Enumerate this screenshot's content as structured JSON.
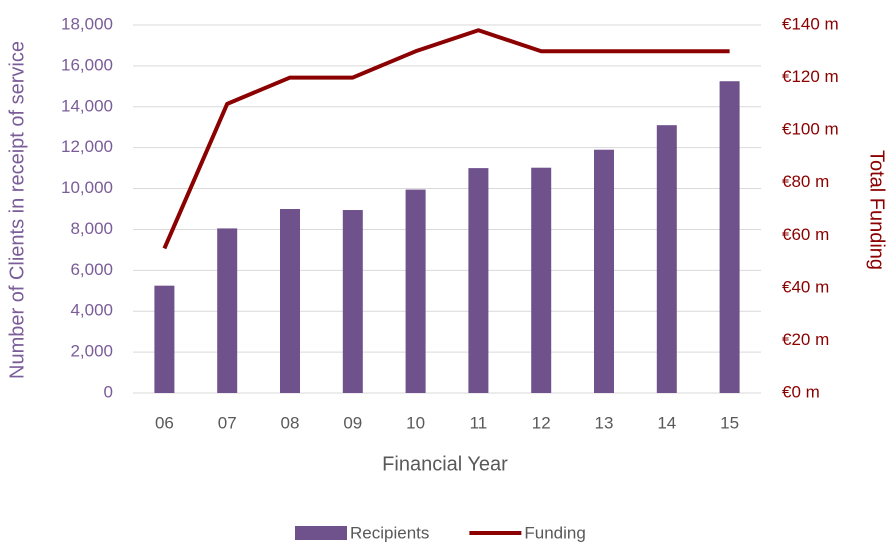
{
  "chart_data": {
    "type": "bar",
    "categories": [
      "06",
      "07",
      "08",
      "09",
      "10",
      "11",
      "12",
      "13",
      "14",
      "15"
    ],
    "series": [
      {
        "name": "Recipients",
        "type": "bar",
        "color": "#6f518c",
        "values": [
          5250,
          8050,
          9000,
          8950,
          9950,
          11000,
          11020,
          11900,
          13100,
          15250
        ]
      },
      {
        "name": "Funding",
        "type": "line",
        "axis": "y2",
        "color": "#8b0000",
        "values": [
          55,
          110,
          120,
          120,
          130,
          138,
          130,
          130,
          130,
          130
        ]
      }
    ],
    "x_label": "Financial Year",
    "y_label": "Number of Clients in receipt of service",
    "y2_label": "Total Funding",
    "ylim": [
      0,
      18000
    ],
    "yticks": [
      0,
      {
        "value": 2000,
        "label": "2,000"
      },
      {
        "value": 4000,
        "label": "4,000"
      },
      {
        "value": 6000,
        "label": "6,000"
      },
      {
        "value": 8000,
        "label": "8,000"
      },
      {
        "value": 10000,
        "label": "10,000"
      },
      {
        "value": 12000,
        "label": "12,000"
      },
      {
        "value": 14000,
        "label": "14,000"
      },
      {
        "value": 16000,
        "label": "16,000"
      },
      {
        "value": 18000,
        "label": "18,000"
      }
    ],
    "y2lim": [
      0,
      140
    ],
    "y2ticks": [
      {
        "value": 0,
        "label": "€0 m"
      },
      {
        "value": 20,
        "label": "€20 m"
      },
      {
        "value": 40,
        "label": "€40 m"
      },
      {
        "value": 60,
        "label": "€60 m"
      },
      {
        "value": 80,
        "label": "€80 m"
      },
      {
        "value": 100,
        "label": "€100 m"
      },
      {
        "value": 120,
        "label": "€120 m"
      },
      {
        "value": 140,
        "label": "€140 m"
      }
    ],
    "y_axis_color": "#7a5c99",
    "y2_axis_color": "#8b0000",
    "grid": true,
    "legend": "bottom"
  }
}
